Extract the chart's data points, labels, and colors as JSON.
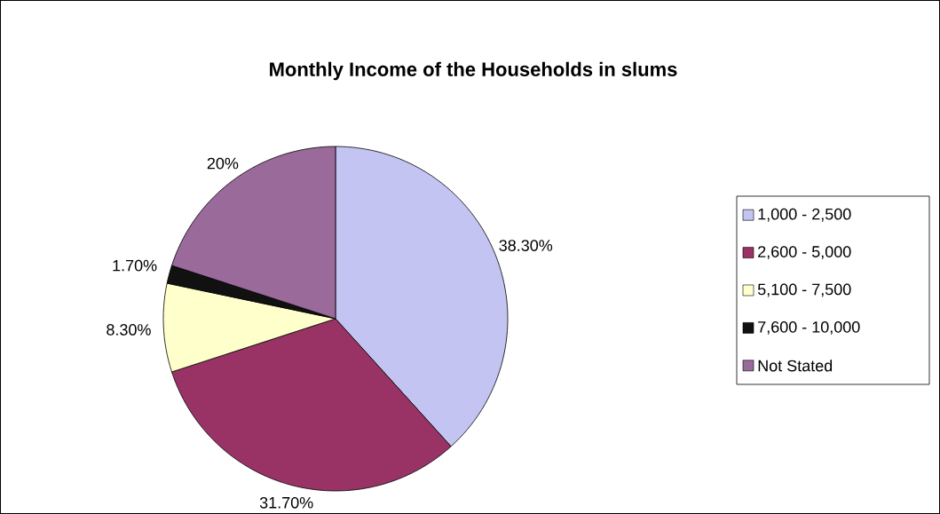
{
  "chart_data": {
    "type": "pie",
    "title": "Monthly Income of the Households in slums",
    "categories": [
      "1,000 - 2,500",
      "2,600 - 5,000",
      "5,100 - 7,500",
      "7,600 - 10,000",
      "Not Stated"
    ],
    "values": [
      38.3,
      31.7,
      8.3,
      1.7,
      20
    ],
    "value_labels": [
      "38.30%",
      "31.70%",
      "8.30%",
      "1.70%",
      "20%"
    ],
    "colors": [
      "#c4c4f2",
      "#993366",
      "#ffffcc",
      "#111111",
      "#9a6a9a"
    ],
    "legend": "right"
  }
}
